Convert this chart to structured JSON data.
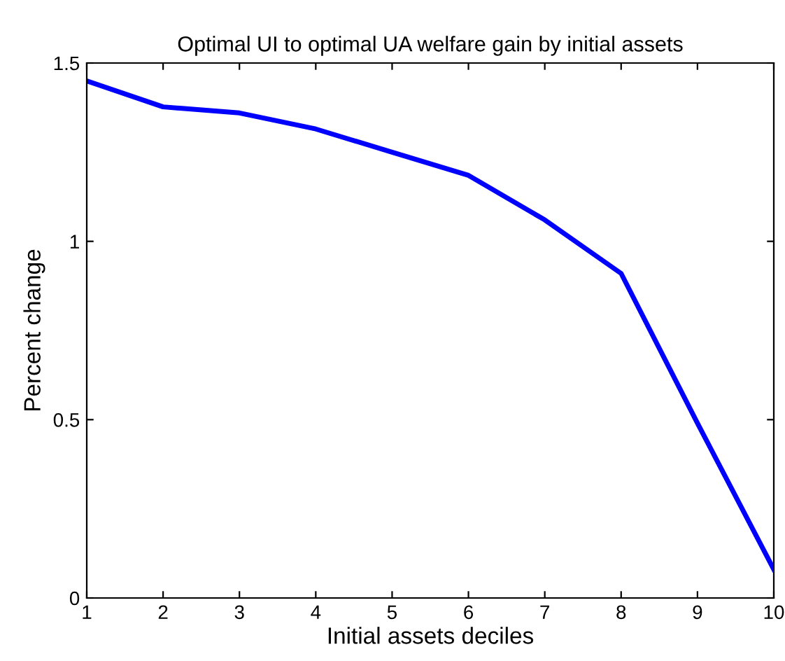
{
  "chart_data": {
    "type": "line",
    "title": "Optimal UI to optimal UA welfare gain by initial assets",
    "xlabel": "Initial assets deciles",
    "ylabel": "Percent change",
    "x": [
      1,
      2,
      3,
      4,
      5,
      6,
      7,
      8,
      9,
      10
    ],
    "series": [
      {
        "color": "#0000ff",
        "values": [
          1.45,
          1.377,
          1.36,
          1.315,
          1.25,
          1.185,
          1.06,
          0.91,
          0.49,
          0.08
        ]
      }
    ],
    "xlim": [
      1,
      10
    ],
    "xticks": [
      1,
      2,
      3,
      4,
      5,
      6,
      7,
      8,
      9,
      10
    ],
    "ylim": [
      0,
      1.5
    ],
    "yticks": [
      0,
      0.5,
      1,
      1.5
    ],
    "grid": false,
    "legend": false
  }
}
